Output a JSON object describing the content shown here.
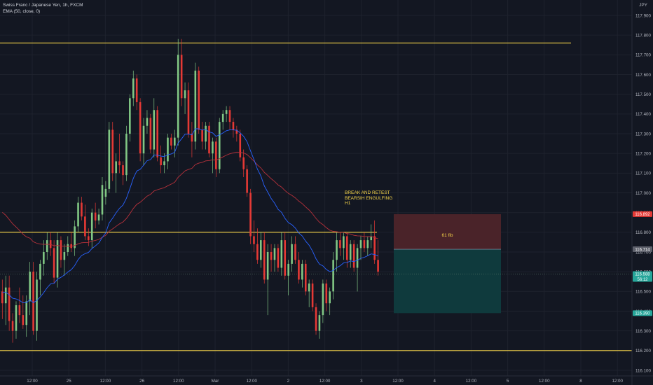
{
  "header": {
    "symbol_line": "Swiss Franc / Japanese Yen, 1h, FXCM",
    "indicator_line": "EMA (50, close, 0)",
    "currency": "JPY"
  },
  "annotation": {
    "lines": [
      "BREAK AND RETEST",
      "BEARSIH ENGULFING",
      "H1"
    ],
    "zone_label": "61 fib"
  },
  "colors": {
    "background": "#131722",
    "bull": "#81c784",
    "bear": "#e53935",
    "level_line": "#f7d64a",
    "ema50": "#b7313b",
    "ema_fast": "#2962ff",
    "stop_zone": "#4a2329",
    "target_zone": "#0f3a3d",
    "axis_text": "#b2b5be"
  },
  "chart_data": {
    "type": "candlestick",
    "timeframe": "1h",
    "ylim": [
      116.08,
      118.0
    ],
    "y_ticks": [
      117.9,
      117.8,
      117.7,
      117.6,
      117.5,
      117.4,
      117.3,
      117.2,
      117.1,
      117.0,
      116.9,
      116.8,
      116.7,
      116.6,
      116.5,
      116.4,
      116.3,
      116.2,
      116.1
    ],
    "x_ticks": [
      "12:00",
      "25",
      "12:00",
      "26",
      "12:00",
      "Mar",
      "12:00",
      "2",
      "12:00",
      "3",
      "12:00",
      "4",
      "12:00",
      "5",
      "12:00",
      "8",
      "12:00"
    ],
    "price_labels": [
      {
        "value": "116.892",
        "role": "stop"
      },
      {
        "value": "116.714",
        "role": "entry"
      },
      {
        "value": "116.588",
        "role": "last",
        "countdown": "56:12"
      },
      {
        "value": "116.390",
        "role": "target"
      }
    ],
    "horizontal_levels": [
      117.76,
      116.8,
      116.2
    ],
    "position": {
      "stop": 116.892,
      "entry": 116.714,
      "target": 116.39
    },
    "candles": [
      [
        116.5,
        116.56,
        116.36,
        116.44
      ],
      [
        116.44,
        116.58,
        116.33,
        116.52
      ],
      [
        116.52,
        116.58,
        116.3,
        116.35
      ],
      [
        116.35,
        116.39,
        116.24,
        116.3
      ],
      [
        116.3,
        116.45,
        116.26,
        116.43
      ],
      [
        116.43,
        116.52,
        116.34,
        116.38
      ],
      [
        116.38,
        116.48,
        116.31,
        116.33
      ],
      [
        116.33,
        116.48,
        116.27,
        116.45
      ],
      [
        116.45,
        116.65,
        116.38,
        116.6
      ],
      [
        116.6,
        116.65,
        116.28,
        116.3
      ],
      [
        116.3,
        116.6,
        116.25,
        116.56
      ],
      [
        116.56,
        116.66,
        116.48,
        116.64
      ],
      [
        116.64,
        116.76,
        116.58,
        116.7
      ],
      [
        116.7,
        116.8,
        116.66,
        116.76
      ],
      [
        116.76,
        116.8,
        116.68,
        116.72
      ],
      [
        116.72,
        116.76,
        116.54,
        116.57
      ],
      [
        116.57,
        116.8,
        116.52,
        116.76
      ],
      [
        116.76,
        116.78,
        116.62,
        116.66
      ],
      [
        116.66,
        116.74,
        116.58,
        116.7
      ],
      [
        116.7,
        116.78,
        116.68,
        116.74
      ],
      [
        116.74,
        116.8,
        116.7,
        116.72
      ],
      [
        116.72,
        116.86,
        116.68,
        116.83
      ],
      [
        116.83,
        116.98,
        116.8,
        116.95
      ],
      [
        116.95,
        116.98,
        116.86,
        116.88
      ],
      [
        116.88,
        116.94,
        116.76,
        116.78
      ],
      [
        116.78,
        116.82,
        116.73,
        116.76
      ],
      [
        116.76,
        116.92,
        116.72,
        116.9
      ],
      [
        116.9,
        116.95,
        116.82,
        116.86
      ],
      [
        116.86,
        116.92,
        116.84,
        116.89
      ],
      [
        116.89,
        117.08,
        116.86,
        117.04
      ],
      [
        116.98,
        117.06,
        116.94,
        117.02
      ],
      [
        117.02,
        117.36,
        117.0,
        117.32
      ],
      [
        117.32,
        117.36,
        117.06,
        117.1
      ],
      [
        117.1,
        117.2,
        117.0,
        117.16
      ],
      [
        117.16,
        117.3,
        117.1,
        117.14
      ],
      [
        117.14,
        117.16,
        117.04,
        117.09
      ],
      [
        117.09,
        117.34,
        117.06,
        117.3
      ],
      [
        117.3,
        117.5,
        117.26,
        117.48
      ],
      [
        117.48,
        117.62,
        117.44,
        117.58
      ],
      [
        117.58,
        117.6,
        117.42,
        117.46
      ],
      [
        117.46,
        117.48,
        117.16,
        117.2
      ],
      [
        117.2,
        117.38,
        117.14,
        117.34
      ],
      [
        117.34,
        117.42,
        117.3,
        117.38
      ],
      [
        117.38,
        117.4,
        117.2,
        117.22
      ],
      [
        117.22,
        117.48,
        117.18,
        117.42
      ],
      [
        117.42,
        117.44,
        117.16,
        117.18
      ],
      [
        117.18,
        117.24,
        117.1,
        117.14
      ],
      [
        117.14,
        117.2,
        117.1,
        117.16
      ],
      [
        117.16,
        117.3,
        117.12,
        117.28
      ],
      [
        117.28,
        117.3,
        117.22,
        117.24
      ],
      [
        117.24,
        117.32,
        117.18,
        117.28
      ],
      [
        117.28,
        117.78,
        117.24,
        117.7
      ],
      [
        117.7,
        117.78,
        117.44,
        117.48
      ],
      [
        117.48,
        117.56,
        117.4,
        117.52
      ],
      [
        117.52,
        117.56,
        117.28,
        117.3
      ],
      [
        117.3,
        117.36,
        117.18,
        117.26
      ],
      [
        117.26,
        117.66,
        117.22,
        117.62
      ],
      [
        117.62,
        117.64,
        117.3,
        117.32
      ],
      [
        117.32,
        117.36,
        117.22,
        117.26
      ],
      [
        117.26,
        117.36,
        117.22,
        117.34
      ],
      [
        117.34,
        117.36,
        117.18,
        117.2
      ],
      [
        117.2,
        117.28,
        117.1,
        117.26
      ],
      [
        117.26,
        117.28,
        117.08,
        117.12
      ],
      [
        117.12,
        117.38,
        117.1,
        117.36
      ],
      [
        117.36,
        117.42,
        117.32,
        117.4
      ],
      [
        117.4,
        117.44,
        117.36,
        117.42
      ],
      [
        117.42,
        117.44,
        117.32,
        117.36
      ],
      [
        117.36,
        117.38,
        117.28,
        117.32
      ],
      [
        117.32,
        117.34,
        117.26,
        117.3
      ],
      [
        117.3,
        117.32,
        117.16,
        117.18
      ],
      [
        117.18,
        117.22,
        117.08,
        117.12
      ],
      [
        117.12,
        117.14,
        116.98,
        117.0
      ],
      [
        117.0,
        117.02,
        116.74,
        116.78
      ],
      [
        116.78,
        116.86,
        116.7,
        116.74
      ],
      [
        116.74,
        116.82,
        116.64,
        116.66
      ],
      [
        116.66,
        116.8,
        116.62,
        116.76
      ],
      [
        116.76,
        116.8,
        116.54,
        116.56
      ],
      [
        116.56,
        116.74,
        116.38,
        116.7
      ],
      [
        116.7,
        116.74,
        116.6,
        116.66
      ],
      [
        116.66,
        116.74,
        116.6,
        116.72
      ],
      [
        116.72,
        116.74,
        116.6,
        116.62
      ],
      [
        116.62,
        116.8,
        116.58,
        116.76
      ],
      [
        116.76,
        116.8,
        116.56,
        116.58
      ],
      [
        116.58,
        116.66,
        116.48,
        116.64
      ],
      [
        116.64,
        116.78,
        116.6,
        116.74
      ],
      [
        116.74,
        116.78,
        116.64,
        116.66
      ],
      [
        116.66,
        116.7,
        116.54,
        116.56
      ],
      [
        116.56,
        116.66,
        116.52,
        116.64
      ],
      [
        116.64,
        116.66,
        116.48,
        116.5
      ],
      [
        116.5,
        116.56,
        116.42,
        116.54
      ],
      [
        116.54,
        116.56,
        116.4,
        116.42
      ],
      [
        116.42,
        116.44,
        116.28,
        116.3
      ],
      [
        116.3,
        116.4,
        116.26,
        116.38
      ],
      [
        116.38,
        116.56,
        116.34,
        116.54
      ],
      [
        116.54,
        116.56,
        116.4,
        116.44
      ],
      [
        116.44,
        116.52,
        116.38,
        116.5
      ],
      [
        116.5,
        116.7,
        116.46,
        116.66
      ],
      [
        116.66,
        116.8,
        116.6,
        116.76
      ],
      [
        116.76,
        116.8,
        116.68,
        116.72
      ],
      [
        116.72,
        116.8,
        116.66,
        116.78
      ],
      [
        116.78,
        116.8,
        116.62,
        116.66
      ],
      [
        116.66,
        116.76,
        116.62,
        116.74
      ],
      [
        116.74,
        116.76,
        116.6,
        116.62
      ],
      [
        116.62,
        116.74,
        116.5,
        116.72
      ],
      [
        116.72,
        116.78,
        116.66,
        116.76
      ],
      [
        116.76,
        116.8,
        116.7,
        116.72
      ],
      [
        116.72,
        116.78,
        116.68,
        116.76
      ],
      [
        116.76,
        116.84,
        116.72,
        116.78
      ],
      [
        116.78,
        116.86,
        116.64,
        116.66
      ],
      [
        116.66,
        116.76,
        116.58,
        116.6
      ]
    ]
  }
}
